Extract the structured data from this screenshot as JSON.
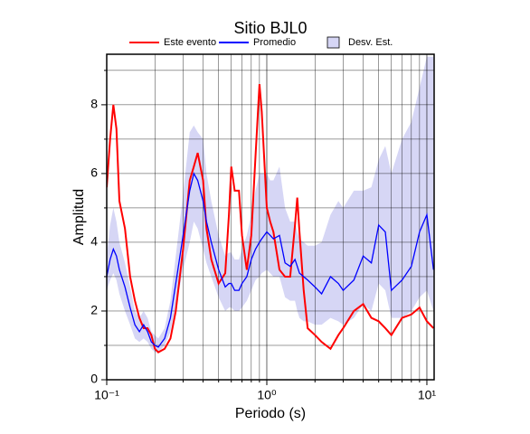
{
  "chart_data": {
    "type": "line",
    "title": "Sitio BJL0",
    "xlabel": "Periodo (s)",
    "ylabel": "Amplitud",
    "xscale": "log",
    "grid": true,
    "xlim": [
      0.1,
      11.1
    ],
    "ylim": [
      0,
      9.47
    ],
    "xticks": [
      {
        "value": 0.1,
        "label": "10⁻¹"
      },
      {
        "value": 1,
        "label": "10⁰"
      },
      {
        "value": 10,
        "label": "10¹"
      }
    ],
    "xminor": [
      0.2,
      0.3,
      0.4,
      0.5,
      0.6,
      0.7,
      0.8,
      0.9,
      2,
      3,
      4,
      5,
      6,
      7,
      8,
      9
    ],
    "yticks": [
      0,
      2,
      4,
      6,
      8
    ],
    "yminor": [
      1,
      3,
      5,
      7,
      9
    ],
    "x": [
      0.1,
      0.105,
      0.11,
      0.115,
      0.12,
      0.13,
      0.14,
      0.15,
      0.16,
      0.17,
      0.18,
      0.19,
      0.2,
      0.21,
      0.23,
      0.25,
      0.27,
      0.3,
      0.33,
      0.35,
      0.37,
      0.4,
      0.42,
      0.45,
      0.5,
      0.55,
      0.58,
      0.6,
      0.63,
      0.67,
      0.7,
      0.75,
      0.8,
      0.85,
      0.9,
      0.93,
      1.0,
      1.05,
      1.1,
      1.2,
      1.3,
      1.4,
      1.5,
      1.55,
      1.6,
      1.7,
      1.8,
      2.0,
      2.2,
      2.5,
      2.8,
      3.0,
      3.5,
      4.0,
      4.5,
      5,
      5.5,
      6,
      7,
      8,
      9,
      10,
      11
    ],
    "band": {
      "name": "Desv. Est.",
      "color": "#d6d6f5",
      "upper": [
        3.6,
        4.5,
        5.0,
        4.6,
        4.0,
        3.4,
        2.7,
        2.0,
        1.8,
        2.0,
        1.8,
        1.4,
        1.3,
        1.2,
        1.5,
        2.3,
        3.6,
        5.4,
        7.2,
        7.4,
        7.2,
        7.0,
        6.0,
        5.2,
        4.2,
        3.6,
        3.7,
        3.7,
        3.5,
        3.5,
        3.8,
        4.2,
        4.8,
        5.5,
        6.0,
        6.0,
        6.0,
        5.8,
        5.8,
        6.2,
        5.0,
        4.6,
        4.6,
        4.3,
        4.1,
        4.0,
        3.9,
        3.9,
        4.0,
        4.8,
        5.2,
        5.0,
        5.5,
        5.5,
        5.6,
        6.4,
        6.8,
        6.0,
        7.0,
        7.5,
        8.5,
        9.4,
        9.4
      ],
      "lower": [
        2.6,
        2.9,
        3.1,
        2.9,
        2.5,
        2.0,
        1.6,
        1.2,
        1.1,
        1.2,
        1.1,
        0.9,
        0.8,
        0.8,
        1.0,
        1.4,
        2.1,
        3.2,
        4.0,
        4.6,
        4.4,
        3.8,
        3.4,
        3.0,
        2.4,
        2.0,
        2.1,
        2.1,
        2.0,
        2.0,
        2.1,
        2.3,
        2.6,
        2.9,
        3.0,
        3.1,
        3.2,
        3.1,
        3.0,
        3.0,
        2.4,
        2.3,
        2.3,
        2.0,
        1.8,
        1.7,
        1.7,
        1.6,
        1.6,
        1.8,
        1.7,
        1.6,
        1.8,
        2.2,
        2.0,
        2.8,
        2.6,
        1.8,
        1.8,
        2.0,
        2.4,
        2.6,
        2.0
      ]
    },
    "series": [
      {
        "name": "Este evento",
        "color": "#ff0000",
        "values": [
          5.6,
          7.0,
          8.0,
          7.3,
          5.2,
          4.4,
          3.0,
          2.3,
          1.8,
          1.5,
          1.5,
          1.3,
          0.9,
          0.8,
          0.9,
          1.2,
          2.0,
          3.8,
          5.8,
          6.2,
          6.6,
          5.8,
          4.4,
          3.5,
          2.8,
          3.1,
          4.8,
          6.2,
          5.5,
          5.5,
          4.2,
          3.2,
          4.2,
          6.5,
          8.6,
          7.8,
          5.0,
          4.6,
          4.3,
          3.2,
          3.0,
          3.0,
          4.5,
          5.3,
          4.3,
          2.6,
          1.5,
          1.3,
          1.1,
          0.9,
          1.3,
          1.5,
          2.0,
          2.2,
          1.8,
          1.7,
          1.5,
          1.3,
          1.8,
          1.9,
          2.1,
          1.7,
          1.5
        ]
      },
      {
        "name": "Promedio",
        "color": "#0000ff",
        "values": [
          3.0,
          3.5,
          3.8,
          3.6,
          3.2,
          2.7,
          2.1,
          1.6,
          1.4,
          1.6,
          1.4,
          1.1,
          1.0,
          0.95,
          1.2,
          1.8,
          2.8,
          4.2,
          5.5,
          6.0,
          5.8,
          5.2,
          4.6,
          4.0,
          3.2,
          2.7,
          2.8,
          2.8,
          2.6,
          2.6,
          2.8,
          3.0,
          3.5,
          3.8,
          4.0,
          4.1,
          4.3,
          4.2,
          4.1,
          4.2,
          3.4,
          3.3,
          3.5,
          3.3,
          3.1,
          3.0,
          2.9,
          2.7,
          2.5,
          3.0,
          2.8,
          2.6,
          2.9,
          3.6,
          3.4,
          4.5,
          4.3,
          2.6,
          2.9,
          3.3,
          4.3,
          4.8,
          3.2
        ]
      }
    ]
  }
}
